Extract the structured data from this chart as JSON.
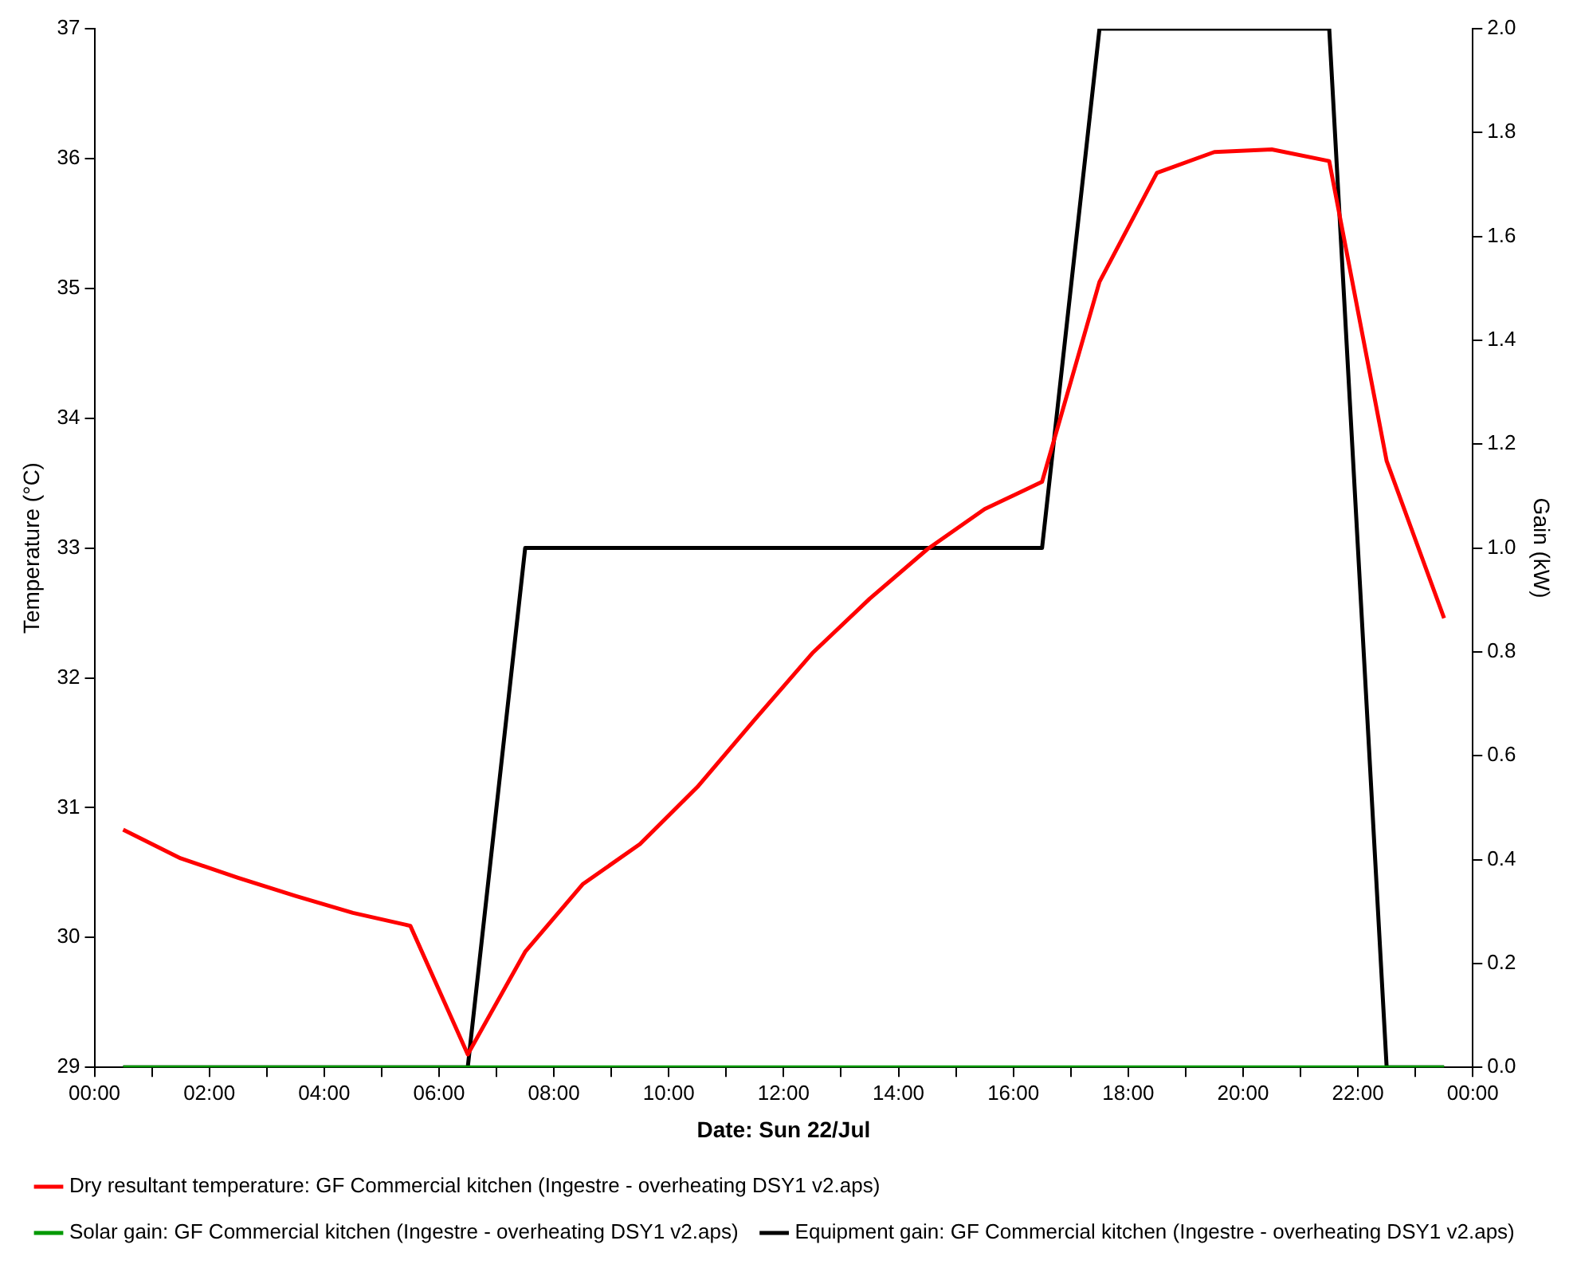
{
  "chart_data": {
    "type": "line",
    "xlabel": "Date: Sun 22/Jul",
    "ylabel": "Temperature (°C)",
    "y2label": "Gain (kW)",
    "x": [
      0.5,
      1.5,
      2.5,
      3.5,
      4.5,
      5.5,
      6.5,
      7.5,
      8.5,
      9.5,
      10.5,
      11.5,
      12.5,
      13.5,
      14.5,
      15.5,
      16.5,
      17.5,
      18.5,
      19.5,
      20.5,
      21.5,
      22.5,
      23.5
    ],
    "xlim": [
      0,
      24
    ],
    "xticks": [
      {
        "value": 0,
        "label": "00:00"
      },
      {
        "value": 1,
        "label": null
      },
      {
        "value": 2,
        "label": "02:00"
      },
      {
        "value": 3,
        "label": null
      },
      {
        "value": 4,
        "label": "04:00"
      },
      {
        "value": 5,
        "label": null
      },
      {
        "value": 6,
        "label": "06:00"
      },
      {
        "value": 7,
        "label": null
      },
      {
        "value": 8,
        "label": "08:00"
      },
      {
        "value": 9,
        "label": null
      },
      {
        "value": 10,
        "label": "10:00"
      },
      {
        "value": 11,
        "label": null
      },
      {
        "value": 12,
        "label": "12:00"
      },
      {
        "value": 13,
        "label": null
      },
      {
        "value": 14,
        "label": "14:00"
      },
      {
        "value": 15,
        "label": null
      },
      {
        "value": 16,
        "label": "16:00"
      },
      {
        "value": 17,
        "label": null
      },
      {
        "value": 18,
        "label": "18:00"
      },
      {
        "value": 19,
        "label": null
      },
      {
        "value": 20,
        "label": "20:00"
      },
      {
        "value": 21,
        "label": null
      },
      {
        "value": 22,
        "label": "22:00"
      },
      {
        "value": 23,
        "label": null
      },
      {
        "value": 24,
        "label": "00:00"
      }
    ],
    "ylim": [
      29,
      37
    ],
    "yticks": [
      29,
      30,
      31,
      32,
      33,
      34,
      35,
      36,
      37
    ],
    "y2lim": [
      0,
      2
    ],
    "y2ticks": [
      {
        "value": 0,
        "label": "0.0"
      },
      0.2,
      0.4,
      0.6,
      0.8,
      {
        "value": 1,
        "label": "1.0"
      },
      1.2,
      1.4,
      1.6,
      1.8,
      {
        "value": 2,
        "label": "2.0"
      }
    ],
    "series": [
      {
        "name": "Dry resultant temperature: GF Commercial kitchen (Ingestre - overheating DSY1 v2.aps)",
        "color": "#ff0000",
        "values": [
          30.83,
          30.61,
          30.46,
          30.32,
          30.19,
          30.09,
          29.1,
          29.89,
          30.41,
          30.72,
          31.16,
          31.68,
          32.19,
          32.61,
          32.99,
          33.3,
          33.51,
          35.05,
          35.89,
          36.05,
          36.07,
          35.98,
          33.67,
          32.46
        ]
      },
      {
        "name": "Solar gain: GF Commercial kitchen (Ingestre - overheating DSY1 v2.aps)",
        "color": "#009900",
        "axis": "y2",
        "values": [
          0,
          0,
          0,
          0,
          0,
          0,
          0,
          0,
          0,
          0,
          0,
          0,
          0,
          0,
          0,
          0,
          0,
          0,
          0,
          0,
          0,
          0,
          0,
          0
        ]
      },
      {
        "name": "Equipment gain: GF Commercial kitchen (Ingestre - overheating DSY1 v2.aps)",
        "color": "#000000",
        "axis": "y2",
        "values": [
          0,
          0,
          0,
          0,
          0,
          0,
          0,
          1,
          1,
          1,
          1,
          1,
          1,
          1,
          1,
          1,
          1,
          2,
          2,
          2,
          2,
          2,
          0,
          0
        ]
      }
    ],
    "legend": "bottom",
    "grid": false,
    "marker": "none",
    "line_style": "solid"
  }
}
